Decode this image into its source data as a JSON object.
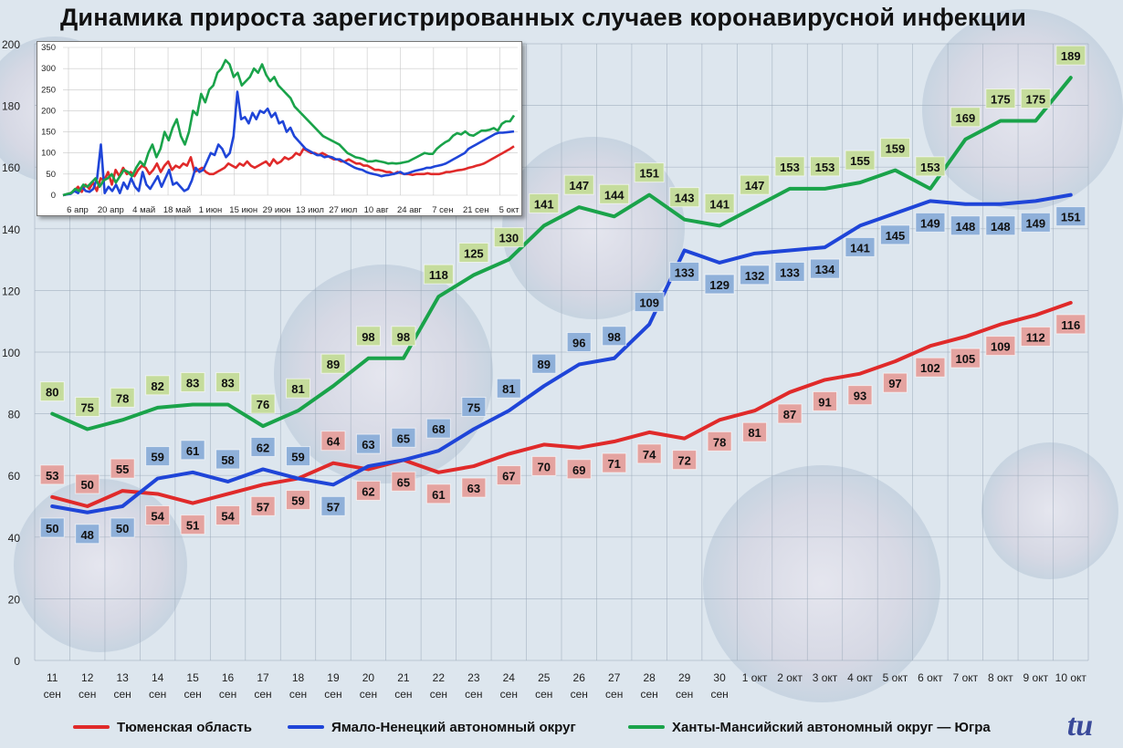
{
  "title": "Динамика прироста зарегистрированных случаев коронавирусной инфекции",
  "colors": {
    "tyumen": "#e02a2a",
    "yanao": "#1f45d8",
    "khmao": "#1aa34a",
    "label_red": "#e4a3a0",
    "label_blue": "#8fb0d9",
    "label_green": "#c5dc9c"
  },
  "chart_data": [
    {
      "type": "line",
      "title": "",
      "xlabel": "",
      "ylabel": "",
      "ylim": [
        0,
        200
      ],
      "yticks": [
        0,
        20,
        40,
        60,
        80,
        100,
        120,
        140,
        160,
        180,
        200
      ],
      "grid": true,
      "legend": "bottom",
      "categories": [
        [
          "11",
          "сен"
        ],
        [
          "12",
          "сен"
        ],
        [
          "13",
          "сен"
        ],
        [
          "14",
          "сен"
        ],
        [
          "15",
          "сен"
        ],
        [
          "16",
          "сен"
        ],
        [
          "17",
          "сен"
        ],
        [
          "18",
          "сен"
        ],
        [
          "19",
          "сен"
        ],
        [
          "20",
          "сен"
        ],
        [
          "21",
          "сен"
        ],
        [
          "22",
          "сен"
        ],
        [
          "23",
          "сен"
        ],
        [
          "24",
          "сен"
        ],
        [
          "25",
          "сен"
        ],
        [
          "26",
          "сен"
        ],
        [
          "27",
          "сен"
        ],
        [
          "28",
          "сен"
        ],
        [
          "29",
          "сен"
        ],
        [
          "30",
          "сен"
        ],
        [
          "1 окт",
          ""
        ],
        [
          "2 окт",
          ""
        ],
        [
          "3 окт",
          ""
        ],
        [
          "4 окт",
          ""
        ],
        [
          "5 окт",
          ""
        ],
        [
          "6 окт",
          ""
        ],
        [
          "7 окт",
          ""
        ],
        [
          "8 окт",
          ""
        ],
        [
          "9 окт",
          ""
        ],
        [
          "10 окт",
          ""
        ]
      ],
      "series": [
        {
          "name": "Тюменская область",
          "color": "#e02a2a",
          "label_color": "#e4a3a0",
          "values": [
            53,
            50,
            55,
            54,
            51,
            54,
            57,
            59,
            64,
            62,
            65,
            61,
            63,
            67,
            70,
            69,
            71,
            74,
            72,
            78,
            81,
            87,
            91,
            93,
            97,
            102,
            105,
            109,
            112,
            116
          ],
          "label_pos": [
            "above",
            "above",
            "above",
            "below",
            "below",
            "below",
            "below",
            "below",
            "above",
            "below",
            "below",
            "below",
            "below",
            "below",
            "below",
            "below",
            "below",
            "below",
            "below",
            "below",
            "below",
            "below",
            "below",
            "below",
            "below",
            "below",
            "below",
            "below",
            "below",
            "below"
          ]
        },
        {
          "name": "Ямало-Ненецкий автономный округ",
          "color": "#1f45d8",
          "label_color": "#8fb0d9",
          "values": [
            50,
            48,
            50,
            59,
            61,
            58,
            62,
            59,
            57,
            63,
            65,
            68,
            75,
            81,
            89,
            96,
            98,
            109,
            133,
            129,
            132,
            133,
            134,
            141,
            145,
            149,
            148,
            148,
            149,
            151
          ],
          "label_pos": [
            "below",
            "below",
            "below",
            "above",
            "above",
            "above",
            "above",
            "above",
            "below",
            "above",
            "above",
            "above",
            "above",
            "above",
            "above",
            "above",
            "above",
            "above",
            "below",
            "below",
            "below",
            "below",
            "below",
            "below",
            "below",
            "below",
            "below",
            "below",
            "below",
            "below"
          ]
        },
        {
          "name": "Ханты-Мансийский автономный округ — Югра",
          "color": "#1aa34a",
          "label_color": "#c5dc9c",
          "values": [
            80,
            75,
            78,
            82,
            83,
            83,
            76,
            81,
            89,
            98,
            98,
            118,
            125,
            130,
            141,
            147,
            144,
            151,
            143,
            141,
            147,
            153,
            153,
            155,
            159,
            153,
            169,
            175,
            175,
            189
          ],
          "label_pos": [
            "above",
            "above",
            "above",
            "above",
            "above",
            "above",
            "above",
            "above",
            "above",
            "above",
            "above",
            "above",
            "above",
            "above",
            "above",
            "above",
            "above",
            "above",
            "above",
            "above",
            "above",
            "above",
            "above",
            "above",
            "above",
            "above",
            "above",
            "above",
            "above",
            "above"
          ]
        }
      ]
    },
    {
      "type": "line",
      "title": "",
      "ylim": [
        0,
        350
      ],
      "yticks": [
        0,
        50,
        100,
        150,
        200,
        250,
        300,
        350
      ],
      "grid": true,
      "x_tick_labels": [
        "6 апр",
        "20 апр",
        "4 май",
        "18 май",
        "1 июн",
        "15 июн",
        "29 июн",
        "13 июл",
        "27 июл",
        "10 авг",
        "24 авг",
        "7 сен",
        "21 сен",
        "5 окт"
      ],
      "series": [
        {
          "color": "#e02a2a",
          "values": [
            0,
            2,
            5,
            10,
            20,
            8,
            25,
            15,
            30,
            10,
            40,
            35,
            55,
            25,
            60,
            45,
            65,
            50,
            55,
            45,
            60,
            70,
            65,
            50,
            60,
            75,
            55,
            70,
            80,
            60,
            70,
            65,
            75,
            70,
            90,
            55,
            60,
            65,
            55,
            50,
            50,
            55,
            60,
            65,
            75,
            70,
            65,
            75,
            70,
            80,
            70,
            65,
            70,
            75,
            80,
            70,
            85,
            75,
            80,
            90,
            85,
            90,
            100,
            95,
            110,
            105,
            100,
            100,
            95,
            100,
            95,
            90,
            85,
            85,
            80,
            80,
            85,
            80,
            75,
            75,
            70,
            70,
            65,
            60,
            60,
            58,
            55,
            55,
            50,
            55,
            52,
            50,
            50,
            48,
            50,
            50,
            50,
            52,
            50,
            50,
            50,
            52,
            55,
            55,
            57,
            59,
            60,
            62,
            65,
            67,
            70,
            72,
            75,
            80,
            85,
            90,
            95,
            100,
            105,
            110,
            116
          ]
        },
        {
          "color": "#1f45d8",
          "values": [
            0,
            2,
            3,
            10,
            5,
            20,
            10,
            8,
            15,
            40,
            120,
            5,
            20,
            10,
            25,
            5,
            30,
            15,
            40,
            20,
            10,
            55,
            25,
            15,
            30,
            45,
            20,
            40,
            60,
            25,
            30,
            20,
            10,
            15,
            35,
            65,
            55,
            60,
            80,
            100,
            95,
            120,
            110,
            90,
            100,
            140,
            245,
            180,
            185,
            170,
            195,
            180,
            200,
            195,
            205,
            185,
            195,
            170,
            175,
            150,
            160,
            140,
            130,
            120,
            110,
            105,
            100,
            95,
            95,
            90,
            92,
            90,
            85,
            85,
            80,
            75,
            70,
            65,
            62,
            60,
            55,
            52,
            50,
            48,
            45,
            47,
            48,
            50,
            52,
            55,
            50,
            52,
            55,
            58,
            60,
            62,
            65,
            65,
            68,
            70,
            72,
            75,
            80,
            85,
            90,
            95,
            100,
            110,
            115,
            120,
            125,
            130,
            135,
            140,
            145,
            148,
            148,
            149,
            150,
            151
          ]
        },
        {
          "color": "#1aa34a",
          "values": [
            0,
            3,
            5,
            15,
            10,
            25,
            20,
            30,
            40,
            20,
            35,
            40,
            50,
            30,
            45,
            60,
            55,
            45,
            65,
            80,
            70,
            100,
            120,
            90,
            110,
            150,
            130,
            160,
            180,
            140,
            120,
            150,
            200,
            190,
            240,
            220,
            250,
            260,
            290,
            300,
            320,
            310,
            280,
            290,
            260,
            270,
            280,
            300,
            290,
            310,
            285,
            270,
            280,
            260,
            250,
            240,
            230,
            210,
            200,
            190,
            180,
            170,
            160,
            150,
            140,
            135,
            130,
            125,
            120,
            110,
            100,
            95,
            90,
            88,
            85,
            80,
            80,
            82,
            80,
            78,
            75,
            76,
            75,
            76,
            78,
            80,
            85,
            90,
            95,
            100,
            98,
            98,
            110,
            118,
            125,
            130,
            141,
            147,
            144,
            151,
            143,
            141,
            147,
            153,
            153,
            155,
            159,
            153,
            169,
            175,
            175,
            189
          ]
        }
      ]
    }
  ]
}
